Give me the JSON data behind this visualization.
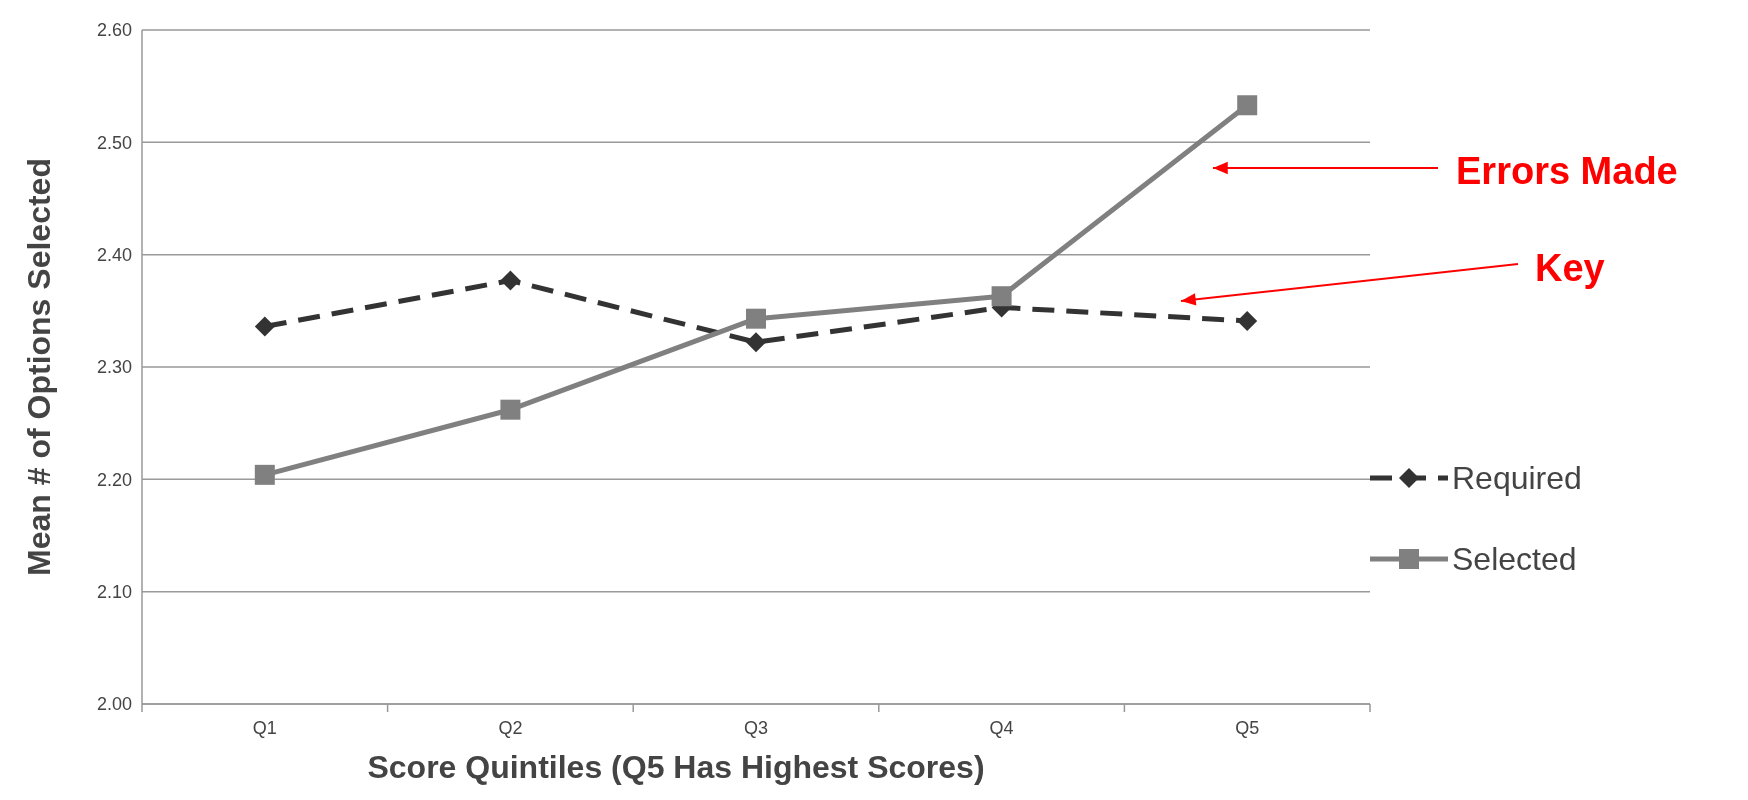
{
  "chart_data": {
    "type": "line",
    "xlabel": "Score Quintiles (Q5 Has Highest Scores)",
    "ylabel": "Mean # of Options Selected",
    "categories": [
      "Q1",
      "Q2",
      "Q3",
      "Q4",
      "Q5"
    ],
    "series": [
      {
        "name": "Required",
        "color": "#333333",
        "values": [
          2.336,
          2.377,
          2.322,
          2.353,
          2.341
        ],
        "marker": "diamond",
        "line_style": "dashed"
      },
      {
        "name": "Selected",
        "color": "#808080",
        "values": [
          2.204,
          2.262,
          2.343,
          2.363,
          2.533
        ],
        "marker": "square",
        "line_style": "solid"
      }
    ],
    "ylim": [
      2.0,
      2.6
    ],
    "yticks": [
      {
        "value": 2.0,
        "label": "2.00"
      },
      {
        "value": 2.1,
        "label": "2.10"
      },
      {
        "value": 2.2,
        "label": "2.20"
      },
      {
        "value": 2.3,
        "label": "2.30"
      },
      {
        "value": 2.4,
        "label": "2.40"
      },
      {
        "value": 2.5,
        "label": "2.50"
      },
      {
        "value": 2.6,
        "label": "2.60"
      }
    ],
    "grid": "y",
    "legend": "right",
    "annotations": [
      "Errors Made",
      "Key"
    ]
  }
}
